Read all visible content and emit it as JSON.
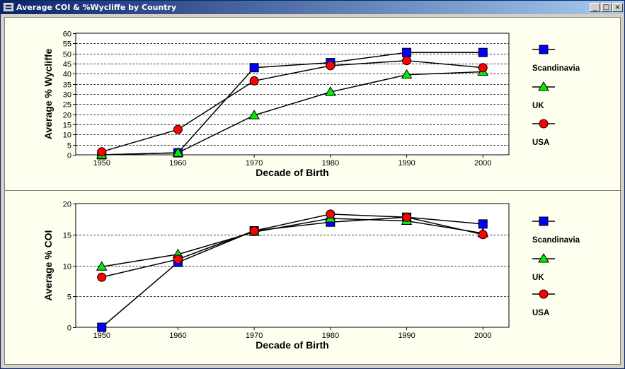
{
  "window": {
    "title": "Average COI & %Wycliffe by Country",
    "minimize_label": "_",
    "maximize_label": "□",
    "close_label": "×"
  },
  "colors": {
    "Scandinavia": "#0000ff",
    "UK": "#00ee00",
    "USA": "#ff0000",
    "panel_bg": "#fffff0",
    "plot_bg": "#ffffff"
  },
  "chart_data": [
    {
      "type": "line",
      "xlabel": "Decade of Birth",
      "ylabel": "Average % Wycliffe",
      "x": [
        1950,
        1960,
        1970,
        1980,
        1990,
        2000
      ],
      "ylim": [
        0,
        60
      ],
      "yticks": [
        0,
        5,
        10,
        15,
        20,
        25,
        30,
        35,
        40,
        45,
        50,
        55,
        60
      ],
      "grid": true,
      "legend_position": "right",
      "series": [
        {
          "name": "Scandinavia",
          "marker": "square",
          "values": [
            0,
            1,
            43,
            45.5,
            50.5,
            50.5
          ]
        },
        {
          "name": "UK",
          "marker": "triangle",
          "values": [
            0,
            1,
            19.5,
            31,
            39.5,
            41
          ]
        },
        {
          "name": "USA",
          "marker": "circle",
          "values": [
            1.5,
            12.5,
            36.5,
            44,
            46.5,
            43
          ]
        }
      ]
    },
    {
      "type": "line",
      "xlabel": "Decade of Birth",
      "ylabel": "Average % COI",
      "x": [
        1950,
        1960,
        1970,
        1980,
        1990,
        2000
      ],
      "ylim": [
        0,
        20
      ],
      "yticks": [
        0,
        5,
        10,
        15,
        20
      ],
      "grid": true,
      "legend_position": "right",
      "series": [
        {
          "name": "Scandinavia",
          "marker": "square",
          "values": [
            0,
            10.5,
            15.6,
            17,
            17.8,
            16.7
          ]
        },
        {
          "name": "UK",
          "marker": "triangle",
          "values": [
            9.8,
            11.8,
            15.4,
            17.6,
            17.2,
            15.2
          ]
        },
        {
          "name": "USA",
          "marker": "circle",
          "values": [
            8.1,
            11,
            15.6,
            18.3,
            17.8,
            15
          ]
        }
      ]
    }
  ]
}
